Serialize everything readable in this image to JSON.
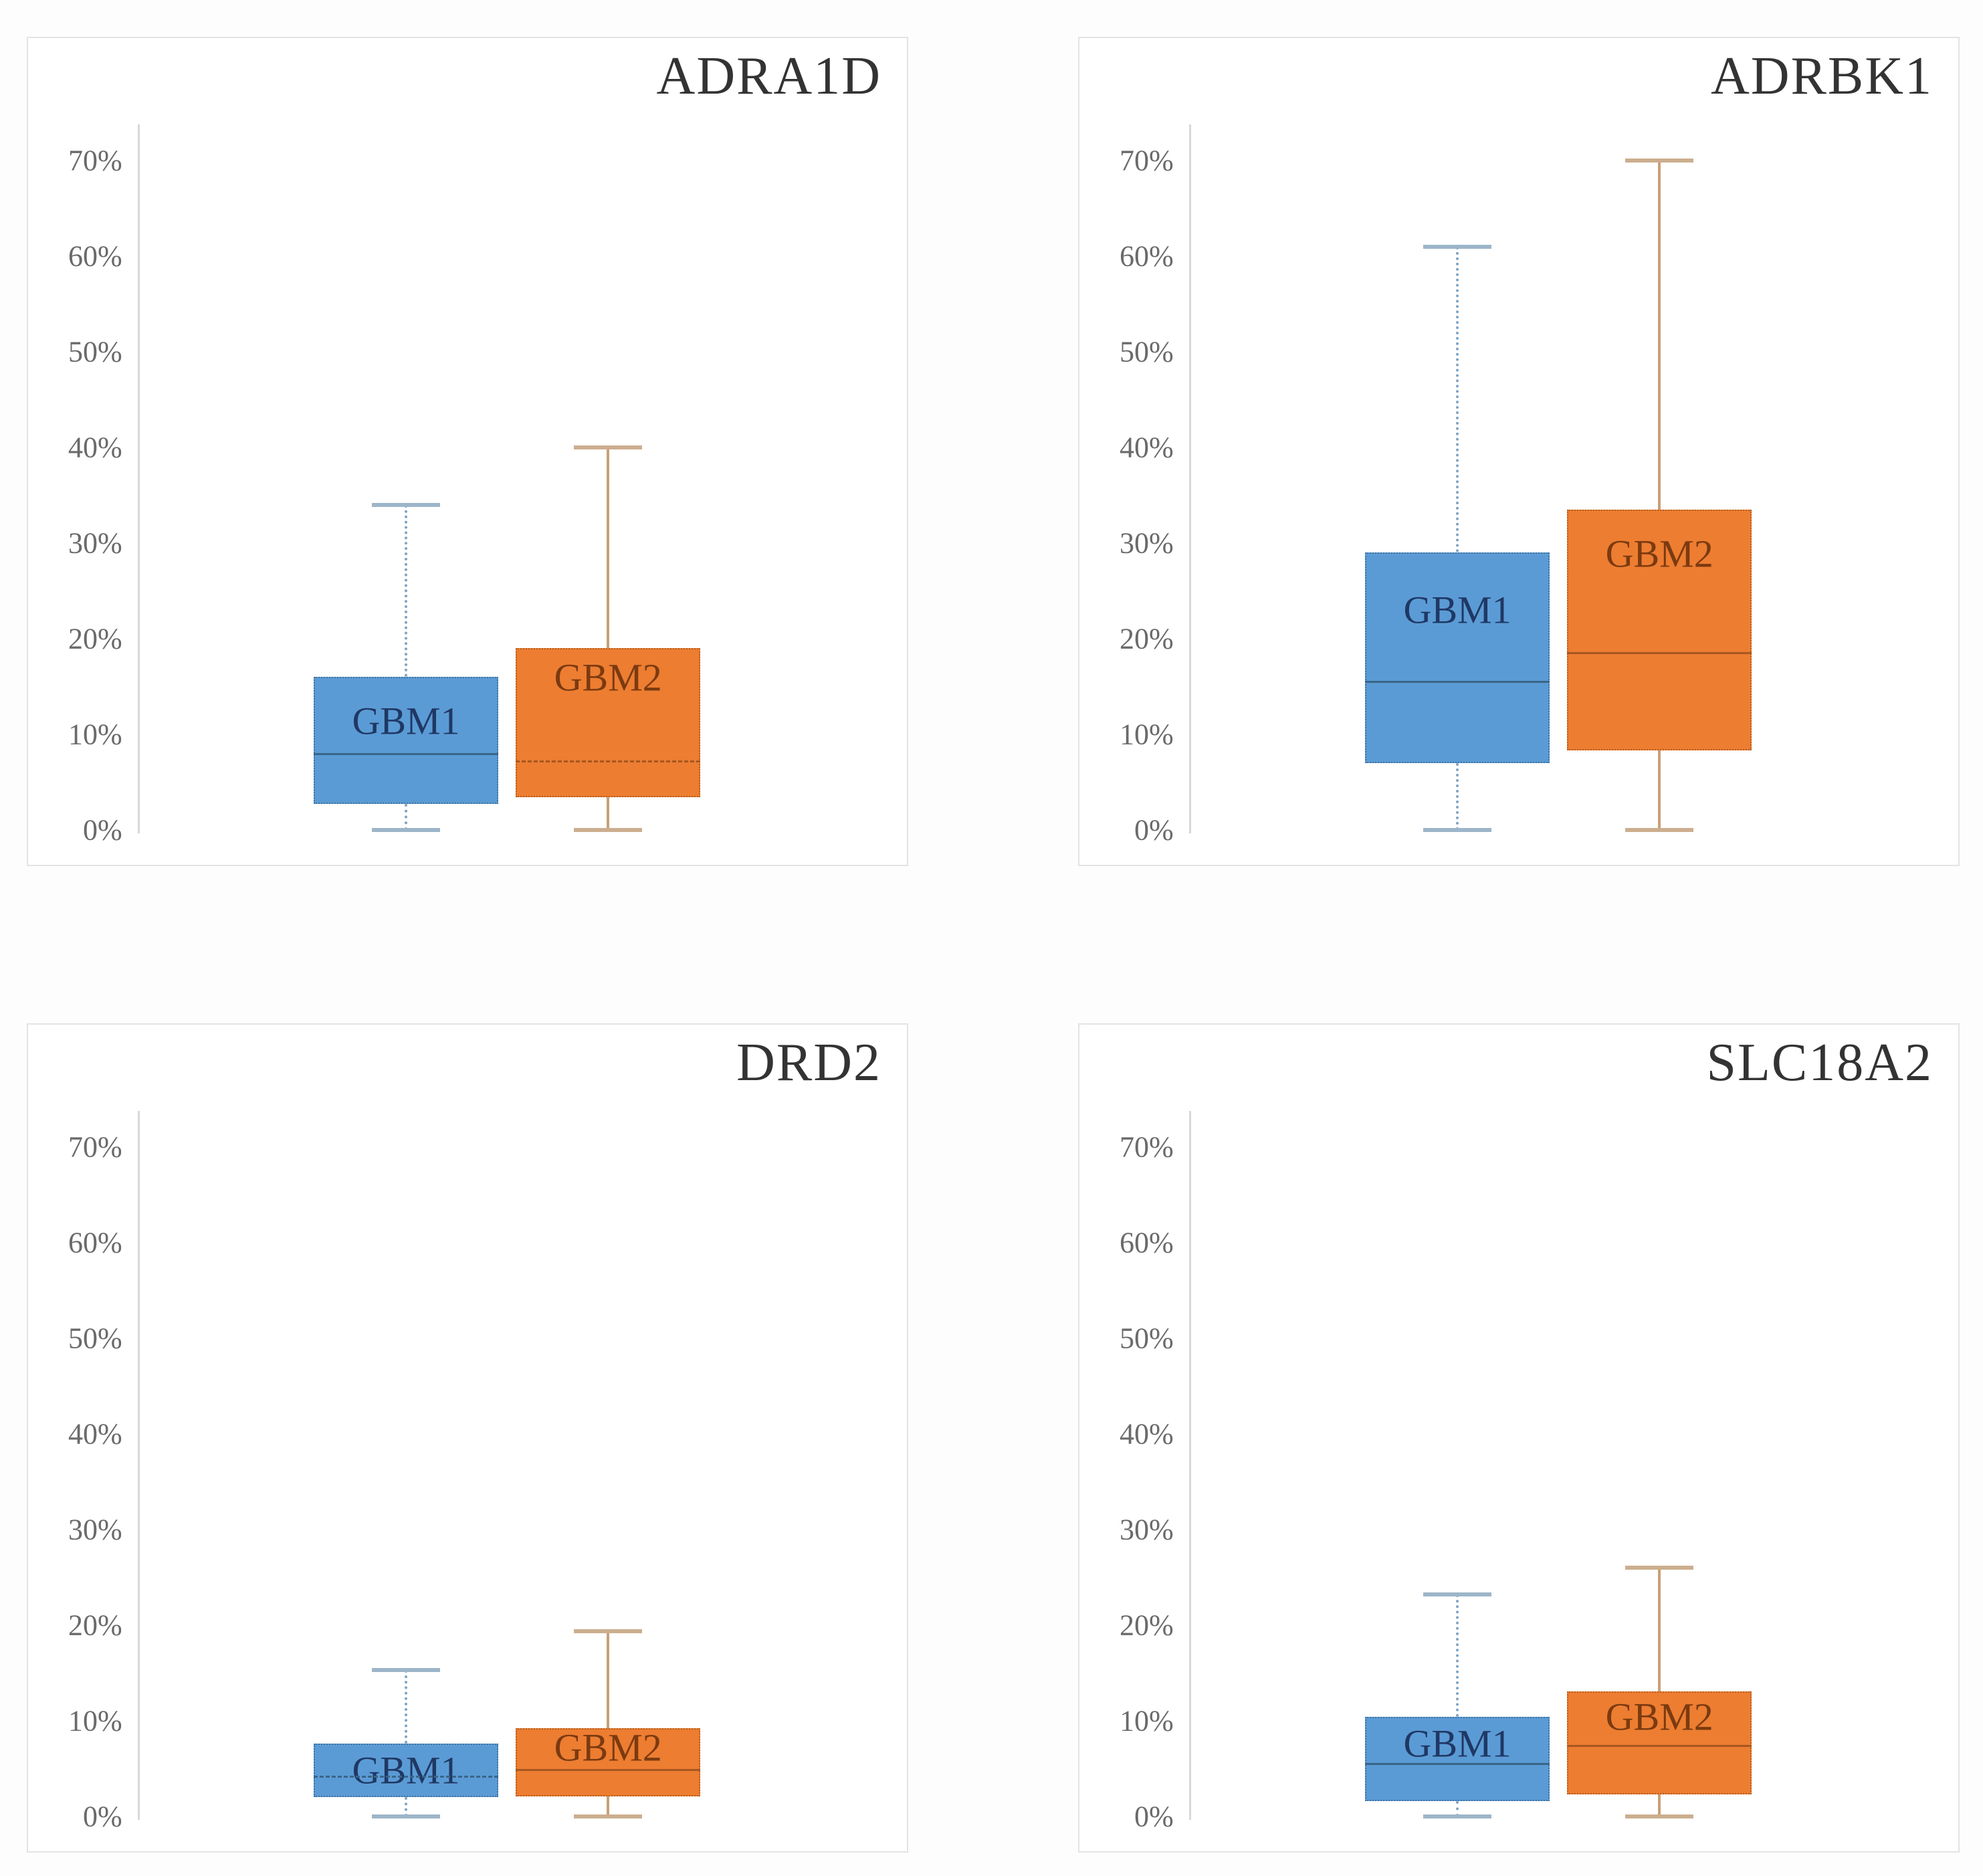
{
  "figure": {
    "description": "Four box-and-whisker plot panels comparing GBM1 and GBM2 expression percentages",
    "page_bg": "#fdfdfd",
    "panel_bg": "#ffffff",
    "panel_border": "#e3e3e3"
  },
  "axis": {
    "min": 0,
    "max": 70,
    "step": 10,
    "tick_labels": [
      "70%",
      "60%",
      "50%",
      "40%",
      "30%",
      "20%",
      "10%",
      "0%"
    ],
    "tick_values": [
      70,
      60,
      50,
      40,
      30,
      20,
      10,
      0
    ],
    "tick_color": "#6a6a6a",
    "line_color": "#d8d8d8",
    "grid": false,
    "legend": "none"
  },
  "colors": {
    "gbm1_fill": "#5B9BD5",
    "gbm1_border": "#41719C",
    "gbm1_median": "#3A6589",
    "gbm1_whisker": "#7FA3C2",
    "gbm1_cap": "#9DB5C9",
    "gbm1_label": "#1F3864",
    "gbm2_fill": "#ED7D31",
    "gbm2_border": "#B25E1E",
    "gbm2_median": "#A65721",
    "gbm2_whisker": "#C8A078",
    "gbm2_cap": "#CCAE8E",
    "gbm2_label": "#7B3A10",
    "title_color": "#333333"
  },
  "chart_data": [
    {
      "type": "box",
      "title": "ADRA1D",
      "ylim": [
        0,
        70
      ],
      "series": [
        {
          "name": "GBM1",
          "min": 0,
          "q1": 2.7,
          "median": 8.0,
          "q3": 16.0,
          "max": 34.0,
          "median_style": "solid",
          "label_frac": 0.34
        },
        {
          "name": "GBM2",
          "min": 0,
          "q1": 3.4,
          "median": 7.2,
          "q3": 19.0,
          "max": 40.0,
          "median_style": "dashed",
          "label_frac": 0.19
        }
      ]
    },
    {
      "type": "box",
      "title": "ADRBK1",
      "ylim": [
        0,
        70
      ],
      "series": [
        {
          "name": "GBM1",
          "min": 0,
          "q1": 7.0,
          "median": 15.5,
          "q3": 29.0,
          "max": 61.0,
          "median_style": "solid",
          "label_frac": 0.27
        },
        {
          "name": "GBM2",
          "min": 0,
          "q1": 8.3,
          "median": 18.5,
          "q3": 33.5,
          "max": 70.0,
          "median_style": "solid",
          "label_frac": 0.18
        }
      ]
    },
    {
      "type": "box",
      "title": "DRD2",
      "ylim": [
        0,
        70
      ],
      "series": [
        {
          "name": "GBM1",
          "min": 0,
          "q1": 2.0,
          "median": 4.2,
          "q3": 7.6,
          "max": 15.3,
          "median_style": "dashed",
          "label_frac": 0.5
        },
        {
          "name": "GBM2",
          "min": 0,
          "q1": 2.1,
          "median": 4.9,
          "q3": 9.2,
          "max": 19.4,
          "median_style": "solid",
          "label_frac": 0.27
        }
      ]
    },
    {
      "type": "box",
      "title": "SLC18A2",
      "ylim": [
        0,
        70
      ],
      "series": [
        {
          "name": "GBM1",
          "min": 0,
          "q1": 1.6,
          "median": 5.5,
          "q3": 10.4,
          "max": 23.2,
          "median_style": "solid",
          "label_frac": 0.31
        },
        {
          "name": "GBM2",
          "min": 0,
          "q1": 2.3,
          "median": 7.4,
          "q3": 13.1,
          "max": 26.0,
          "median_style": "solid",
          "label_frac": 0.24
        }
      ]
    }
  ]
}
